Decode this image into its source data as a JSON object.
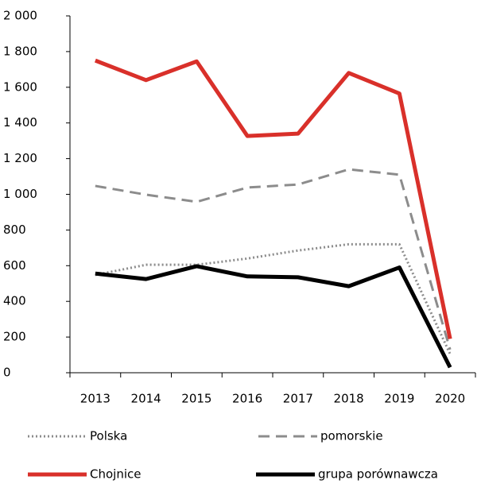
{
  "chart_data": {
    "type": "line",
    "categories": [
      "2013",
      "2014",
      "2015",
      "2016",
      "2017",
      "2018",
      "2019",
      "2020"
    ],
    "series": [
      {
        "name": "Polska",
        "color": "#8c8c8c",
        "dash": "dotted",
        "values": [
          548,
          605,
          605,
          640,
          685,
          720,
          720,
          105
        ]
      },
      {
        "name": "pomorskie",
        "color": "#8c8c8c",
        "dash": "dashed",
        "values": [
          1047,
          998,
          958,
          1038,
          1055,
          1140,
          1110,
          130
        ]
      },
      {
        "name": "Chojnice",
        "color": "#d9302a",
        "dash": "solid",
        "values": [
          1750,
          1640,
          1745,
          1327,
          1340,
          1680,
          1565,
          190
        ]
      },
      {
        "name": "grupa porównawcza",
        "color": "#000000",
        "dash": "solid",
        "values": [
          556,
          525,
          597,
          540,
          535,
          485,
          590,
          30
        ]
      }
    ],
    "ylim": [
      0,
      2000
    ],
    "yticks": [
      0,
      200,
      400,
      600,
      800,
      {
        "value": 1000,
        "label": "1 000"
      },
      {
        "value": 1200,
        "label": "1 200"
      },
      {
        "value": 1400,
        "label": "1 400"
      },
      {
        "value": 1600,
        "label": "1 600"
      },
      {
        "value": 1800,
        "label": "1 800"
      },
      {
        "value": 2000,
        "label": "2 000"
      }
    ],
    "grid": false,
    "legend": "bottom"
  }
}
